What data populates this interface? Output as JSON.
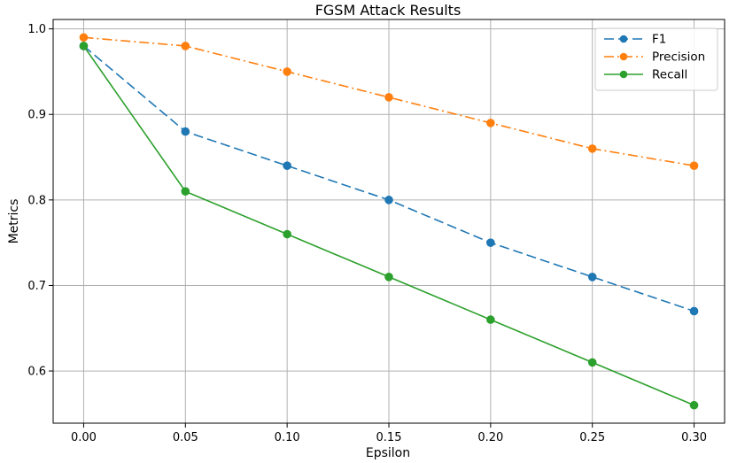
{
  "chart_data": {
    "type": "line",
    "title": "FGSM Attack Results",
    "xlabel": "Epsilon",
    "ylabel": "Metrics",
    "x": [
      0.0,
      0.05,
      0.1,
      0.15,
      0.2,
      0.25,
      0.3
    ],
    "x_tick_labels": [
      "0.00",
      "0.05",
      "0.10",
      "0.15",
      "0.20",
      "0.25",
      "0.30"
    ],
    "y_ticks": [
      0.6,
      0.7,
      0.8,
      0.9,
      1.0
    ],
    "y_tick_labels": [
      "0.6",
      "0.7",
      "0.8",
      "0.9",
      "1.0"
    ],
    "xlim": [
      -0.015,
      0.315
    ],
    "ylim": [
      0.539,
      1.011
    ],
    "grid": true,
    "legend_position": "top-right",
    "series": [
      {
        "name": "F1",
        "values": [
          0.98,
          0.88,
          0.84,
          0.8,
          0.75,
          0.71,
          0.67
        ],
        "color": "#1f77b4",
        "line_style": "dashed",
        "marker": "circle"
      },
      {
        "name": "Precision",
        "values": [
          0.99,
          0.98,
          0.95,
          0.92,
          0.89,
          0.86,
          0.84
        ],
        "color": "#ff7f0e",
        "line_style": "dashdot",
        "marker": "circle"
      },
      {
        "name": "Recall",
        "values": [
          0.98,
          0.81,
          0.76,
          0.71,
          0.66,
          0.61,
          0.56
        ],
        "color": "#2ca02c",
        "line_style": "solid",
        "marker": "circle"
      }
    ]
  }
}
